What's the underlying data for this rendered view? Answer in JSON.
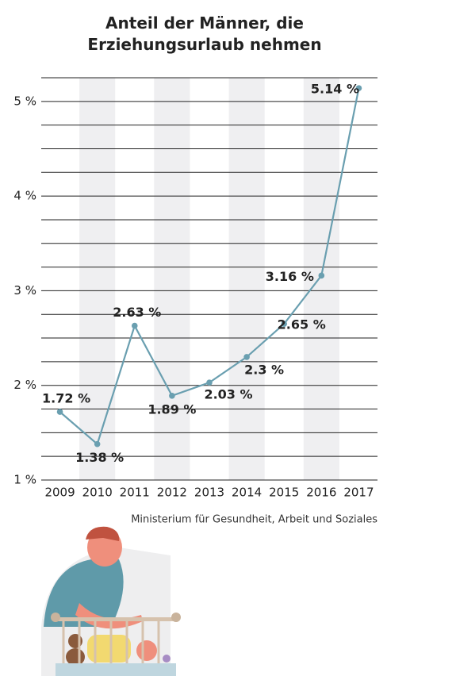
{
  "chart_data": {
    "type": "line",
    "title": "Anteil der Männer, die Erziehungsurlaub nehmen",
    "categories": [
      "2009",
      "2010",
      "2011",
      "2012",
      "2013",
      "2014",
      "2015",
      "2016",
      "2017"
    ],
    "values": [
      1.72,
      1.38,
      2.63,
      1.89,
      2.03,
      2.3,
      2.65,
      3.16,
      5.14
    ],
    "value_labels": [
      "1.72 %",
      "1.38 %",
      "2.63 %",
      "1.89 %",
      "2.03 %",
      "2.3 %",
      "2.65 %",
      "3.16 %",
      "5.14 %"
    ],
    "color": "#6a9fb0",
    "ylim": [
      1,
      5.25
    ],
    "yticks": [
      {
        "value": 1,
        "label": "1 %"
      },
      {
        "value": 2,
        "label": "2 %"
      },
      {
        "value": 3,
        "label": "3 %"
      },
      {
        "value": 4,
        "label": "4 %"
      },
      {
        "value": 5,
        "label": "5 %"
      }
    ],
    "minor_yticks": [
      1.25,
      1.5,
      1.75,
      2.25,
      2.5,
      2.75,
      3.25,
      3.5,
      3.75,
      4.25,
      4.5,
      4.75,
      5.25
    ],
    "grid": true,
    "source": "Ministerium für Gesundheit, Arbeit und Soziales"
  }
}
